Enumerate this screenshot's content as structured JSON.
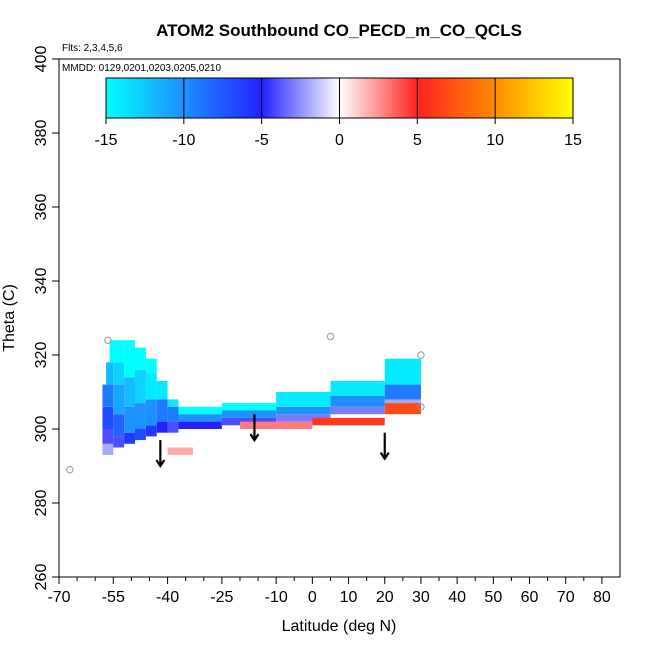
{
  "chart_data": {
    "type": "heatmap",
    "title": "ATOM2 Southbound CO_PECD_m_CO_QCLS",
    "subtitle_flights": "Flts: 2,3,4,5,6",
    "subtitle_dates": "MMDD: 0129,0201,0203,0205,0210",
    "xlabel": "Latitude (deg N)",
    "ylabel": "Theta (C)",
    "xlim": [
      -70,
      85
    ],
    "ylim": [
      260,
      400
    ],
    "x_major_ticks": [
      -70,
      -55,
      -40,
      -25,
      -10,
      0,
      10,
      20,
      30,
      40,
      50,
      60,
      70,
      80
    ],
    "x_minor_ticks": [
      -65,
      -60,
      -50,
      -45,
      -35,
      -30,
      -20,
      -15,
      -5,
      5,
      15,
      25,
      35,
      45,
      55,
      65,
      75
    ],
    "x_tick_labels": [
      "-70",
      "-55",
      "-40",
      "-25",
      "-10",
      "0",
      "10",
      "20",
      "30",
      "40",
      "50",
      "60",
      "70",
      "80"
    ],
    "y_ticks": [
      260,
      280,
      300,
      320,
      340,
      360,
      380,
      400
    ],
    "y_tick_labels": [
      "260",
      "280",
      "300",
      "320",
      "340",
      "360",
      "380",
      "400"
    ],
    "colorbar": {
      "range": [
        -15,
        15
      ],
      "ticks": [
        -15,
        -10,
        -5,
        0,
        5,
        10,
        15
      ],
      "tick_labels": [
        "-15",
        "-10",
        "-5",
        "0",
        "5",
        "10",
        "15"
      ],
      "colors": [
        "#00ffff",
        "#1e90ff",
        "#2222ff",
        "#ffffff",
        "#ff2222",
        "#ff8c00",
        "#ffff00"
      ]
    },
    "cells": [
      {
        "lat": [
          -58,
          -55
        ],
        "theta": [
          293,
          296
        ],
        "value": -2
      },
      {
        "lat": [
          -58,
          -55
        ],
        "theta": [
          296,
          300
        ],
        "value": -4
      },
      {
        "lat": [
          -58,
          -55
        ],
        "theta": [
          300,
          306
        ],
        "value": -7
      },
      {
        "lat": [
          -58,
          -55
        ],
        "theta": [
          306,
          312
        ],
        "value": -9
      },
      {
        "lat": [
          -57,
          -55
        ],
        "theta": [
          312,
          318
        ],
        "value": -12
      },
      {
        "lat": [
          -56,
          -52
        ],
        "theta": [
          318,
          324
        ],
        "value": -15
      },
      {
        "lat": [
          -55,
          -52
        ],
        "theta": [
          295,
          298
        ],
        "value": -4
      },
      {
        "lat": [
          -55,
          -52
        ],
        "theta": [
          298,
          304
        ],
        "value": -8
      },
      {
        "lat": [
          -55,
          -52
        ],
        "theta": [
          304,
          312
        ],
        "value": -11
      },
      {
        "lat": [
          -55,
          -52
        ],
        "theta": [
          312,
          318
        ],
        "value": -13
      },
      {
        "lat": [
          -52,
          -49
        ],
        "theta": [
          296,
          299
        ],
        "value": -6
      },
      {
        "lat": [
          -52,
          -49
        ],
        "theta": [
          299,
          306
        ],
        "value": -10
      },
      {
        "lat": [
          -52,
          -49
        ],
        "theta": [
          306,
          314
        ],
        "value": -12
      },
      {
        "lat": [
          -52,
          -49
        ],
        "theta": [
          314,
          324
        ],
        "value": -15
      },
      {
        "lat": [
          -49,
          -46
        ],
        "theta": [
          297,
          300
        ],
        "value": -7
      },
      {
        "lat": [
          -49,
          -46
        ],
        "theta": [
          300,
          307
        ],
        "value": -10
      },
      {
        "lat": [
          -49,
          -46
        ],
        "theta": [
          307,
          316
        ],
        "value": -13
      },
      {
        "lat": [
          -49,
          -46
        ],
        "theta": [
          316,
          322
        ],
        "value": -15
      },
      {
        "lat": [
          -46,
          -43
        ],
        "theta": [
          298,
          301
        ],
        "value": -6
      },
      {
        "lat": [
          -46,
          -43
        ],
        "theta": [
          301,
          308
        ],
        "value": -10
      },
      {
        "lat": [
          -46,
          -43
        ],
        "theta": [
          308,
          315
        ],
        "value": -14
      },
      {
        "lat": [
          -46,
          -43
        ],
        "theta": [
          315,
          319
        ],
        "value": -15
      },
      {
        "lat": [
          -43,
          -40
        ],
        "theta": [
          299,
          302
        ],
        "value": -5
      },
      {
        "lat": [
          -43,
          -40
        ],
        "theta": [
          302,
          308
        ],
        "value": -9
      },
      {
        "lat": [
          -43,
          -40
        ],
        "theta": [
          308,
          313
        ],
        "value": -14
      },
      {
        "lat": [
          -40,
          -37
        ],
        "theta": [
          299,
          302
        ],
        "value": -4
      },
      {
        "lat": [
          -40,
          -37
        ],
        "theta": [
          302,
          306
        ],
        "value": -9
      },
      {
        "lat": [
          -40,
          -37
        ],
        "theta": [
          306,
          308
        ],
        "value": -14
      },
      {
        "lat": [
          -37,
          -25
        ],
        "theta": [
          300,
          302
        ],
        "value": -5
      },
      {
        "lat": [
          -37,
          -25
        ],
        "theta": [
          302,
          304
        ],
        "value": -10
      },
      {
        "lat": [
          -37,
          -25
        ],
        "theta": [
          304,
          306
        ],
        "value": -15
      },
      {
        "lat": [
          -25,
          -10
        ],
        "theta": [
          301,
          303
        ],
        "value": -4
      },
      {
        "lat": [
          -25,
          -10
        ],
        "theta": [
          303,
          305
        ],
        "value": -10
      },
      {
        "lat": [
          -25,
          -10
        ],
        "theta": [
          305,
          307
        ],
        "value": -15
      },
      {
        "lat": [
          -10,
          5
        ],
        "theta": [
          302,
          304
        ],
        "value": -3
      },
      {
        "lat": [
          -10,
          5
        ],
        "theta": [
          304,
          306
        ],
        "value": -10
      },
      {
        "lat": [
          -10,
          5
        ],
        "theta": [
          306,
          310
        ],
        "value": -14
      },
      {
        "lat": [
          5,
          20
        ],
        "theta": [
          304,
          306
        ],
        "value": -3
      },
      {
        "lat": [
          5,
          20
        ],
        "theta": [
          306,
          309
        ],
        "value": -10
      },
      {
        "lat": [
          5,
          20
        ],
        "theta": [
          309,
          313
        ],
        "value": -14
      },
      {
        "lat": [
          20,
          30
        ],
        "theta": [
          306,
          308
        ],
        "value": -2
      },
      {
        "lat": [
          20,
          30
        ],
        "theta": [
          308,
          312
        ],
        "value": -9
      },
      {
        "lat": [
          20,
          30
        ],
        "theta": [
          312,
          319
        ],
        "value": -14
      },
      {
        "lat": [
          -20,
          0
        ],
        "theta": [
          300,
          302
        ],
        "value": 3
      },
      {
        "lat": [
          0,
          20
        ],
        "theta": [
          301,
          303
        ],
        "value": 6
      },
      {
        "lat": [
          20,
          30
        ],
        "theta": [
          304,
          307
        ],
        "value": 7
      },
      {
        "lat": [
          -40,
          -33
        ],
        "theta": [
          293,
          295
        ],
        "value": 2
      }
    ],
    "markers": [
      {
        "lat": -56.5,
        "theta": 324
      },
      {
        "lat": -67,
        "theta": 289
      },
      {
        "lat": 5,
        "theta": 325
      },
      {
        "lat": 30,
        "theta": 320
      },
      {
        "lat": 30,
        "theta": 306
      }
    ],
    "arrows": [
      {
        "lat": -42,
        "theta_top": 297,
        "theta_tip": 290
      },
      {
        "lat": -16,
        "theta_top": 304,
        "theta_tip": 297
      },
      {
        "lat": 20,
        "theta_top": 299,
        "theta_tip": 292
      }
    ]
  }
}
